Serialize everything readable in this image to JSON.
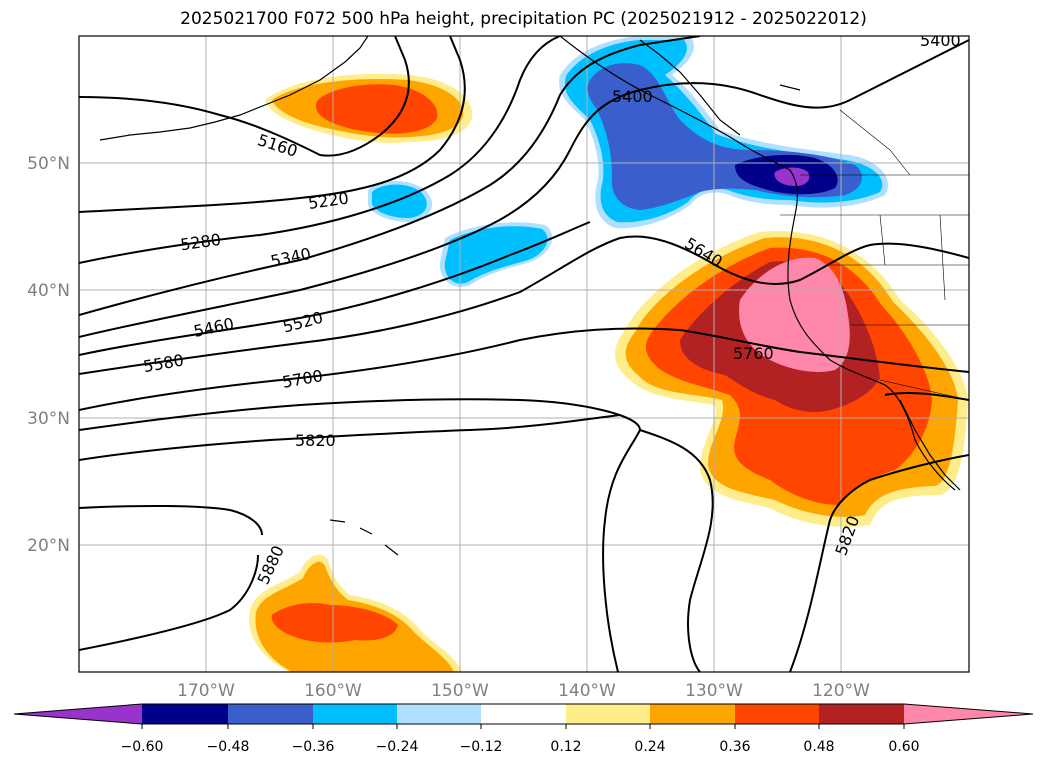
{
  "title": "2025021700 F072 500 hPa height, precipitation PC (2025021912 - 2025022012)",
  "lat_labels": [
    "50°N",
    "40°N",
    "30°N",
    "20°N"
  ],
  "lon_labels": [
    "170°W",
    "160°W",
    "150°W",
    "140°W",
    "130°W",
    "120°W"
  ],
  "contour_labels": [
    "5400",
    "5400",
    "5160",
    "5220",
    "5280",
    "5340",
    "5460",
    "5520",
    "5580",
    "5640",
    "5700",
    "5760",
    "5820",
    "5820",
    "5880"
  ],
  "colorbar": {
    "ticks": [
      "−0.60",
      "−0.48",
      "−0.36",
      "−0.24",
      "−0.12",
      "0.12",
      "0.24",
      "0.36",
      "0.48",
      "0.60"
    ],
    "colors": [
      "#9933cc",
      "#00008b",
      "#3a5fcd",
      "#00bfff",
      "#b0e0ff",
      "#ffffff",
      "#ffec8b",
      "#ffa500",
      "#ff4500",
      "#b22222",
      "#ff88aa"
    ]
  },
  "colors": {
    "grid": "#b0b0b0",
    "contour": "#000000"
  }
}
